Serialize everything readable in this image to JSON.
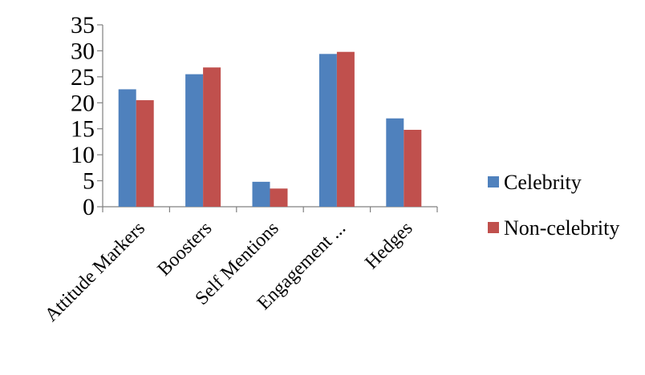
{
  "chart_data": {
    "type": "bar",
    "categories": [
      "Attitude Markers",
      "Boosters",
      "Self Mentions",
      "Engagement ...",
      "Hedges"
    ],
    "series": [
      {
        "name": "Celebrity",
        "color": "#4F81BD",
        "values": [
          22.6,
          25.5,
          4.8,
          29.4,
          17.0
        ]
      },
      {
        "name": "Non-celebrity",
        "color": "#C0504D",
        "values": [
          20.5,
          26.8,
          3.5,
          29.8,
          14.8
        ]
      }
    ],
    "title": "",
    "xlabel": "",
    "ylabel": "",
    "ylim": [
      0,
      35
    ],
    "yticks": [
      0,
      5,
      10,
      15,
      20,
      25,
      30,
      35
    ],
    "grid": false,
    "legend_position": "right"
  }
}
